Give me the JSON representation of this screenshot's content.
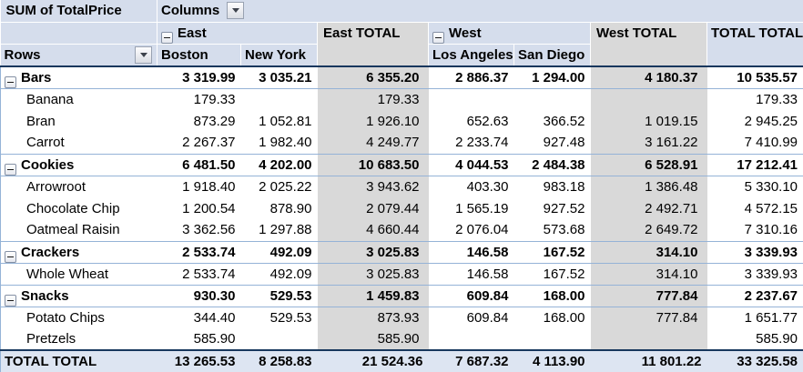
{
  "pivot": {
    "measure_label": "SUM of TotalPrice",
    "columns_label": "Columns",
    "rows_label": "Rows",
    "grand_total_label": "TOTAL TOTAL",
    "col_groups": [
      {
        "label": "East",
        "total_label": "East TOTAL",
        "cities": [
          "Boston",
          "New York"
        ]
      },
      {
        "label": "West",
        "total_label": "West TOTAL",
        "cities": [
          "Los Angeles",
          "San Diego"
        ]
      }
    ],
    "column_keys": [
      "boston",
      "new-york",
      "east-total",
      "los-angeles",
      "san-diego",
      "west-total",
      "total-total"
    ],
    "rows": [
      {
        "label": "Bars",
        "type": "category",
        "values": [
          "3 319.99",
          "3 035.21",
          "6 355.20",
          "2 886.37",
          "1 294.00",
          "4 180.37",
          "10 535.57"
        ]
      },
      {
        "label": "Banana",
        "type": "detail",
        "values": [
          "179.33",
          "",
          "179.33",
          "",
          "",
          "",
          "179.33"
        ]
      },
      {
        "label": "Bran",
        "type": "detail",
        "values": [
          "873.29",
          "1 052.81",
          "1 926.10",
          "652.63",
          "366.52",
          "1 019.15",
          "2 945.25"
        ]
      },
      {
        "label": "Carrot",
        "type": "detail",
        "values": [
          "2 267.37",
          "1 982.40",
          "4 249.77",
          "2 233.74",
          "927.48",
          "3 161.22",
          "7 410.99"
        ]
      },
      {
        "label": "Cookies",
        "type": "category",
        "values": [
          "6 481.50",
          "4 202.00",
          "10 683.50",
          "4 044.53",
          "2 484.38",
          "6 528.91",
          "17 212.41"
        ]
      },
      {
        "label": "Arrowroot",
        "type": "detail",
        "values": [
          "1 918.40",
          "2 025.22",
          "3 943.62",
          "403.30",
          "983.18",
          "1 386.48",
          "5 330.10"
        ]
      },
      {
        "label": "Chocolate Chip",
        "type": "detail",
        "values": [
          "1 200.54",
          "878.90",
          "2 079.44",
          "1 565.19",
          "927.52",
          "2 492.71",
          "4 572.15"
        ]
      },
      {
        "label": "Oatmeal Raisin",
        "type": "detail",
        "values": [
          "3 362.56",
          "1 297.88",
          "4 660.44",
          "2 076.04",
          "573.68",
          "2 649.72",
          "7 310.16"
        ]
      },
      {
        "label": "Crackers",
        "type": "category",
        "values": [
          "2 533.74",
          "492.09",
          "3 025.83",
          "146.58",
          "167.52",
          "314.10",
          "3 339.93"
        ]
      },
      {
        "label": "Whole Wheat",
        "type": "detail",
        "values": [
          "2 533.74",
          "492.09",
          "3 025.83",
          "146.58",
          "167.52",
          "314.10",
          "3 339.93"
        ]
      },
      {
        "label": "Snacks",
        "type": "category",
        "values": [
          "930.30",
          "529.53",
          "1 459.83",
          "609.84",
          "168.00",
          "777.84",
          "2 237.67"
        ]
      },
      {
        "label": "Potato Chips",
        "type": "detail",
        "values": [
          "344.40",
          "529.53",
          "873.93",
          "609.84",
          "168.00",
          "777.84",
          "1 651.77"
        ]
      },
      {
        "label": "Pretzels",
        "type": "detail",
        "values": [
          "585.90",
          "",
          "585.90",
          "",
          "",
          "",
          "585.90"
        ]
      },
      {
        "label": "TOTAL TOTAL",
        "type": "grand",
        "values": [
          "13 265.53",
          "8 258.83",
          "21 524.36",
          "7 687.32",
          "4 113.90",
          "11 801.22",
          "33 325.58"
        ]
      }
    ]
  },
  "icons": {
    "collapse": "minus-box-icon",
    "dropdown": "chevron-down-icon"
  },
  "colors": {
    "header_bg": "#D5DDEC",
    "gray_column_bg": "#D9D9D9",
    "grand_row_bg": "#DDE5F2",
    "group_border": "#95B3D7",
    "dark_border": "#17375D",
    "text": "#000000"
  }
}
